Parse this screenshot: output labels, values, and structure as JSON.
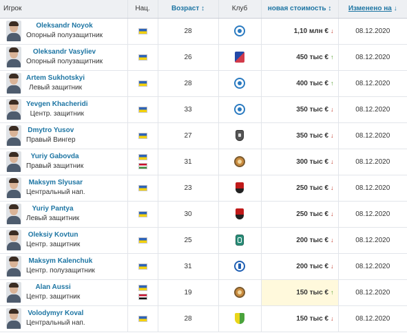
{
  "header": {
    "player": "Игрок",
    "nationality": "Нац.",
    "age": "Возраст",
    "age_sort": "↕",
    "club": "Клуб",
    "value": "новая стоимость",
    "value_sort": "↕",
    "changed": "Изменено на",
    "changed_sort": "↓"
  },
  "rows": [
    {
      "name": "Oleksandr Noyok",
      "position": "Опорный полузащитник",
      "flags": [
        "ua"
      ],
      "age": "28",
      "club_icon": "dnipro-1-crest",
      "value": "1,10 млн €",
      "trend": "down",
      "arrow": "↓",
      "date": "08.12.2020",
      "highlight": false
    },
    {
      "name": "Oleksandr Vasyliev",
      "position": "Опорный полузащитник",
      "flags": [
        "ua"
      ],
      "age": "26",
      "club_icon": "mariupol-crest",
      "value": "450 тыс €",
      "trend": "up",
      "arrow": "↑",
      "date": "08.12.2020",
      "highlight": false
    },
    {
      "name": "Artem Sukhotskyi",
      "position": "Левый защитник",
      "flags": [
        "ua"
      ],
      "age": "28",
      "club_icon": "dnipro-1-crest",
      "value": "400 тыс €",
      "trend": "up",
      "arrow": "↑",
      "date": "08.12.2020",
      "highlight": false
    },
    {
      "name": "Yevgen Khacheridi",
      "position": "Центр. защитник",
      "flags": [
        "ua"
      ],
      "age": "33",
      "club_icon": "dnipro-1-crest",
      "value": "350 тыс €",
      "trend": "down",
      "arrow": "↓",
      "date": "08.12.2020",
      "highlight": false
    },
    {
      "name": "Dmytro Yusov",
      "position": "Правый Вингер",
      "flags": [
        "ua"
      ],
      "age": "27",
      "club_icon": "shield-bw-crest",
      "value": "350 тыс €",
      "trend": "down",
      "arrow": "↓",
      "date": "08.12.2020",
      "highlight": false
    },
    {
      "name": "Yuriy Gabovda",
      "position": "Правый защитник",
      "flags": [
        "ua",
        "hu"
      ],
      "age": "31",
      "club_icon": "orange-round-crest",
      "value": "300 тыс €",
      "trend": "down",
      "arrow": "↓",
      "date": "08.12.2020",
      "highlight": false
    },
    {
      "name": "Maksym Slyusar",
      "position": "Центральный нап.",
      "flags": [
        "ua"
      ],
      "age": "23",
      "club_icon": "kryvbas-crest",
      "value": "250 тыс €",
      "trend": "down",
      "arrow": "↓",
      "date": "08.12.2020",
      "highlight": false
    },
    {
      "name": "Yuriy Pantya",
      "position": "Левый защитник",
      "flags": [
        "ua"
      ],
      "age": "30",
      "club_icon": "kryvbas-crest",
      "value": "250 тыс €",
      "trend": "down",
      "arrow": "↓",
      "date": "08.12.2020",
      "highlight": false
    },
    {
      "name": "Oleksiy Kovtun",
      "position": "Центр. защитник",
      "flags": [
        "ua"
      ],
      "age": "25",
      "club_icon": "vorskla-crest",
      "value": "200 тыс €",
      "trend": "down",
      "arrow": "↓",
      "date": "08.12.2020",
      "highlight": false
    },
    {
      "name": "Maksym Kalenchuk",
      "position": "Центр. полузащитник",
      "flags": [
        "ua"
      ],
      "age": "31",
      "club_icon": "chornomorets-crest",
      "value": "200 тыс €",
      "trend": "down",
      "arrow": "↓",
      "date": "08.12.2020",
      "highlight": false
    },
    {
      "name": "Alan Aussi",
      "position": "Центр. защитник",
      "flags": [
        "ua",
        "eg"
      ],
      "age": "19",
      "club_icon": "orange-round-crest",
      "value": "150 тыс €",
      "trend": "up",
      "arrow": "↑",
      "date": "08.12.2020",
      "highlight": true
    },
    {
      "name": "Volodymyr Koval",
      "position": "Центральный нап.",
      "flags": [
        "ua"
      ],
      "age": "28",
      "club_icon": "yellow-green-crest",
      "value": "150 тыс €",
      "trend": "down",
      "arrow": "↓",
      "date": "08.12.2020",
      "highlight": false
    }
  ],
  "colors": {
    "link": "#1d75a3",
    "trend_up": "#4f9a2a",
    "trend_down": "#c0392b",
    "highlight": "#fff9dc",
    "header_bg": "#eef0f3"
  }
}
